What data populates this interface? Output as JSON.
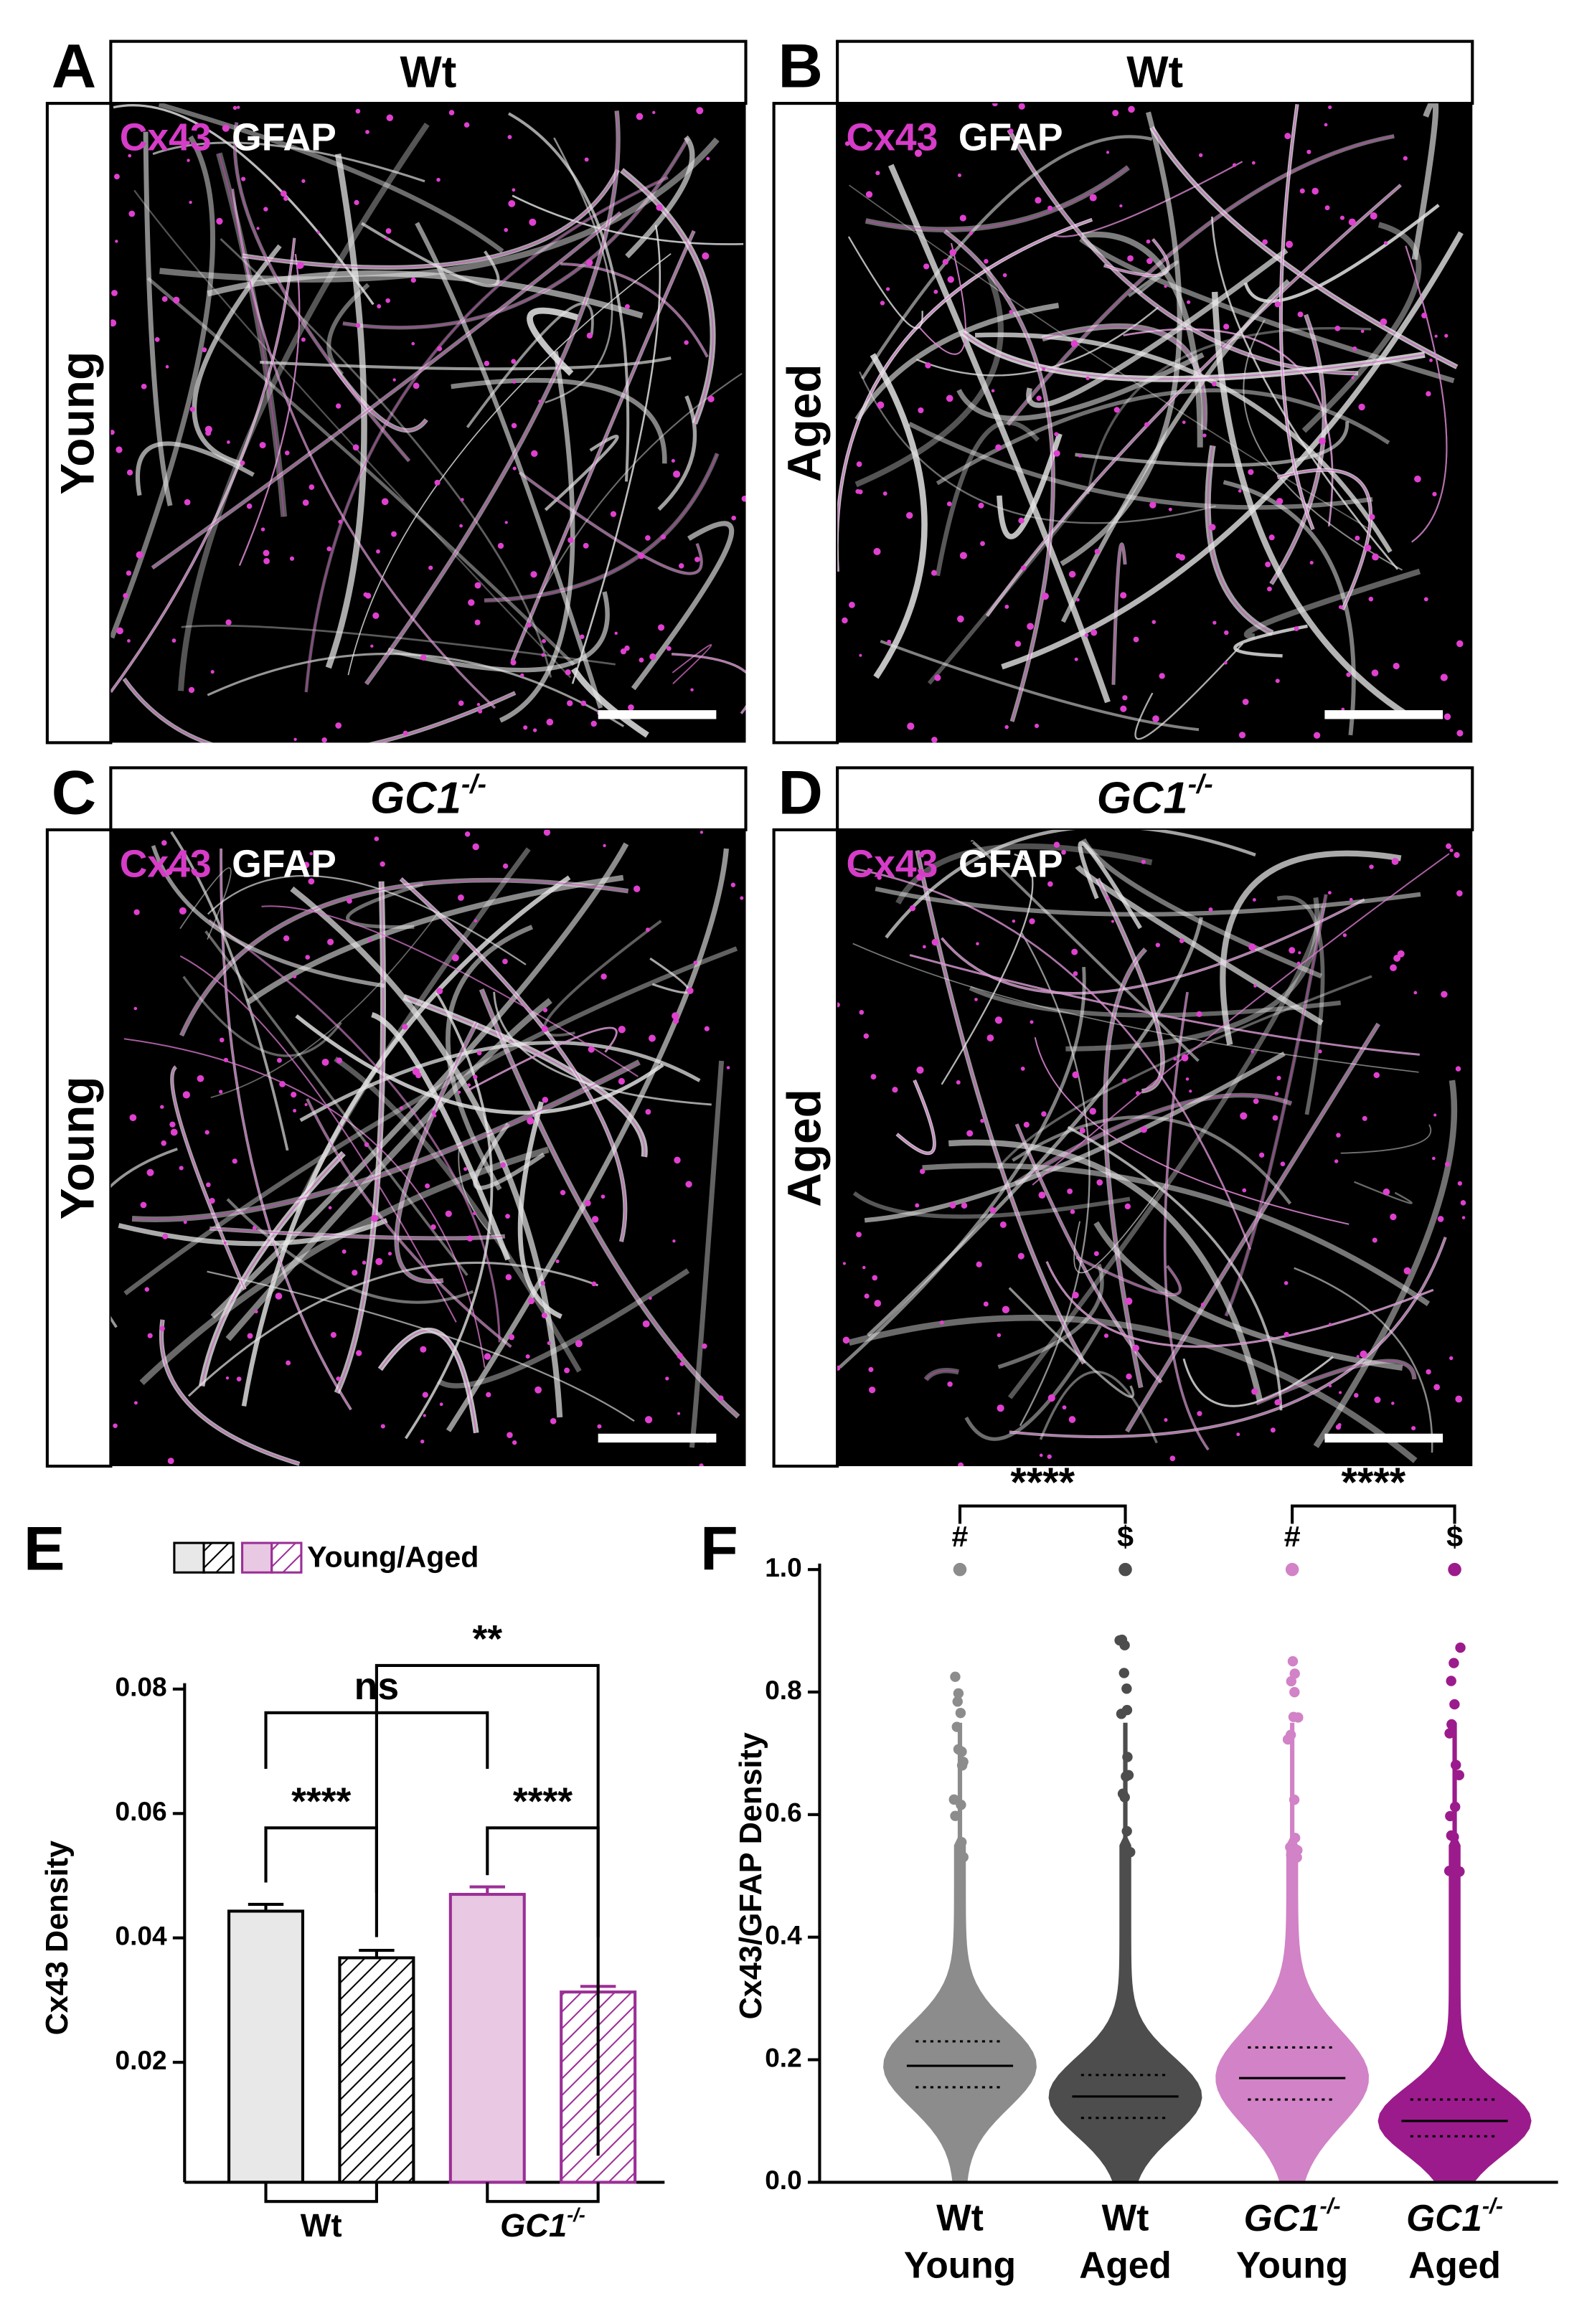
{
  "panels": [
    {
      "letter": "A",
      "column_title": "Wt",
      "row_title": "Young",
      "stain": [
        "Cx43",
        "GFAP"
      ]
    },
    {
      "letter": "B",
      "column_title": "Wt",
      "row_title": "Aged",
      "stain": [
        "Cx43",
        "GFAP"
      ]
    },
    {
      "letter": "C",
      "column_title": {
        "text": "GC1",
        "sup": "-/-"
      },
      "row_title": "Young",
      "stain": [
        "Cx43",
        "GFAP"
      ]
    },
    {
      "letter": "D",
      "column_title": {
        "text": "GC1",
        "sup": "-/-"
      },
      "row_title": "Aged",
      "stain": [
        "Cx43",
        "GFAP"
      ]
    }
  ],
  "chart_data": [
    {
      "type": "bar",
      "letter": "E",
      "ylabel": "Cx43 Density",
      "legend_label": "Young/Aged",
      "groups": [
        "Wt",
        {
          "text": "GC1",
          "sup": "-/-"
        }
      ],
      "group_colors": [
        {
          "fill": "#e8e8e8",
          "stroke": "#000000"
        },
        {
          "fill": "#e8c8e2",
          "stroke": "#9b2f96"
        }
      ],
      "values": [
        0.0443,
        0.0368,
        0.047,
        0.0313
      ],
      "errors": [
        0.0011,
        0.0012,
        0.0012,
        0.0009
      ],
      "ylim": [
        0,
        0.08
      ],
      "yticks": [
        0.02,
        0.04,
        0.06,
        0.08
      ],
      "annotations": [
        "****",
        "ns",
        "****",
        "**"
      ]
    },
    {
      "type": "swarm",
      "letter": "F",
      "ylabel": "Cx43/GFAP Density",
      "categories": [
        {
          "genotype": "Wt",
          "age": "Young"
        },
        {
          "genotype": "Wt",
          "age": "Aged"
        },
        {
          "genotype": {
            "text": "GC1",
            "sup": "-/-"
          },
          "age": "Young"
        },
        {
          "genotype": {
            "text": "GC1",
            "sup": "-/-"
          },
          "age": "Aged"
        }
      ],
      "series": [
        {
          "color": "#8c8c8c",
          "median": 0.19,
          "q1": 0.155,
          "q3": 0.23,
          "max": 1.0
        },
        {
          "color": "#4d4d4d",
          "median": 0.14,
          "q1": 0.105,
          "q3": 0.175,
          "max": 1.0
        },
        {
          "color": "#d282c6",
          "median": 0.17,
          "q1": 0.135,
          "q3": 0.22,
          "max": 1.0
        },
        {
          "color": "#9b1b8c",
          "median": 0.1,
          "q1": 0.075,
          "q3": 0.135,
          "max": 1.0
        }
      ],
      "ylim": [
        0,
        1
      ],
      "yticks": [
        {
          "value": 0,
          "label": "0.0"
        },
        0.2,
        0.4,
        0.6,
        0.8,
        {
          "value": 1,
          "label": "1.0"
        }
      ],
      "markers": [
        "#",
        "$",
        "#",
        "$"
      ],
      "annotations": [
        "****",
        "****"
      ]
    }
  ]
}
